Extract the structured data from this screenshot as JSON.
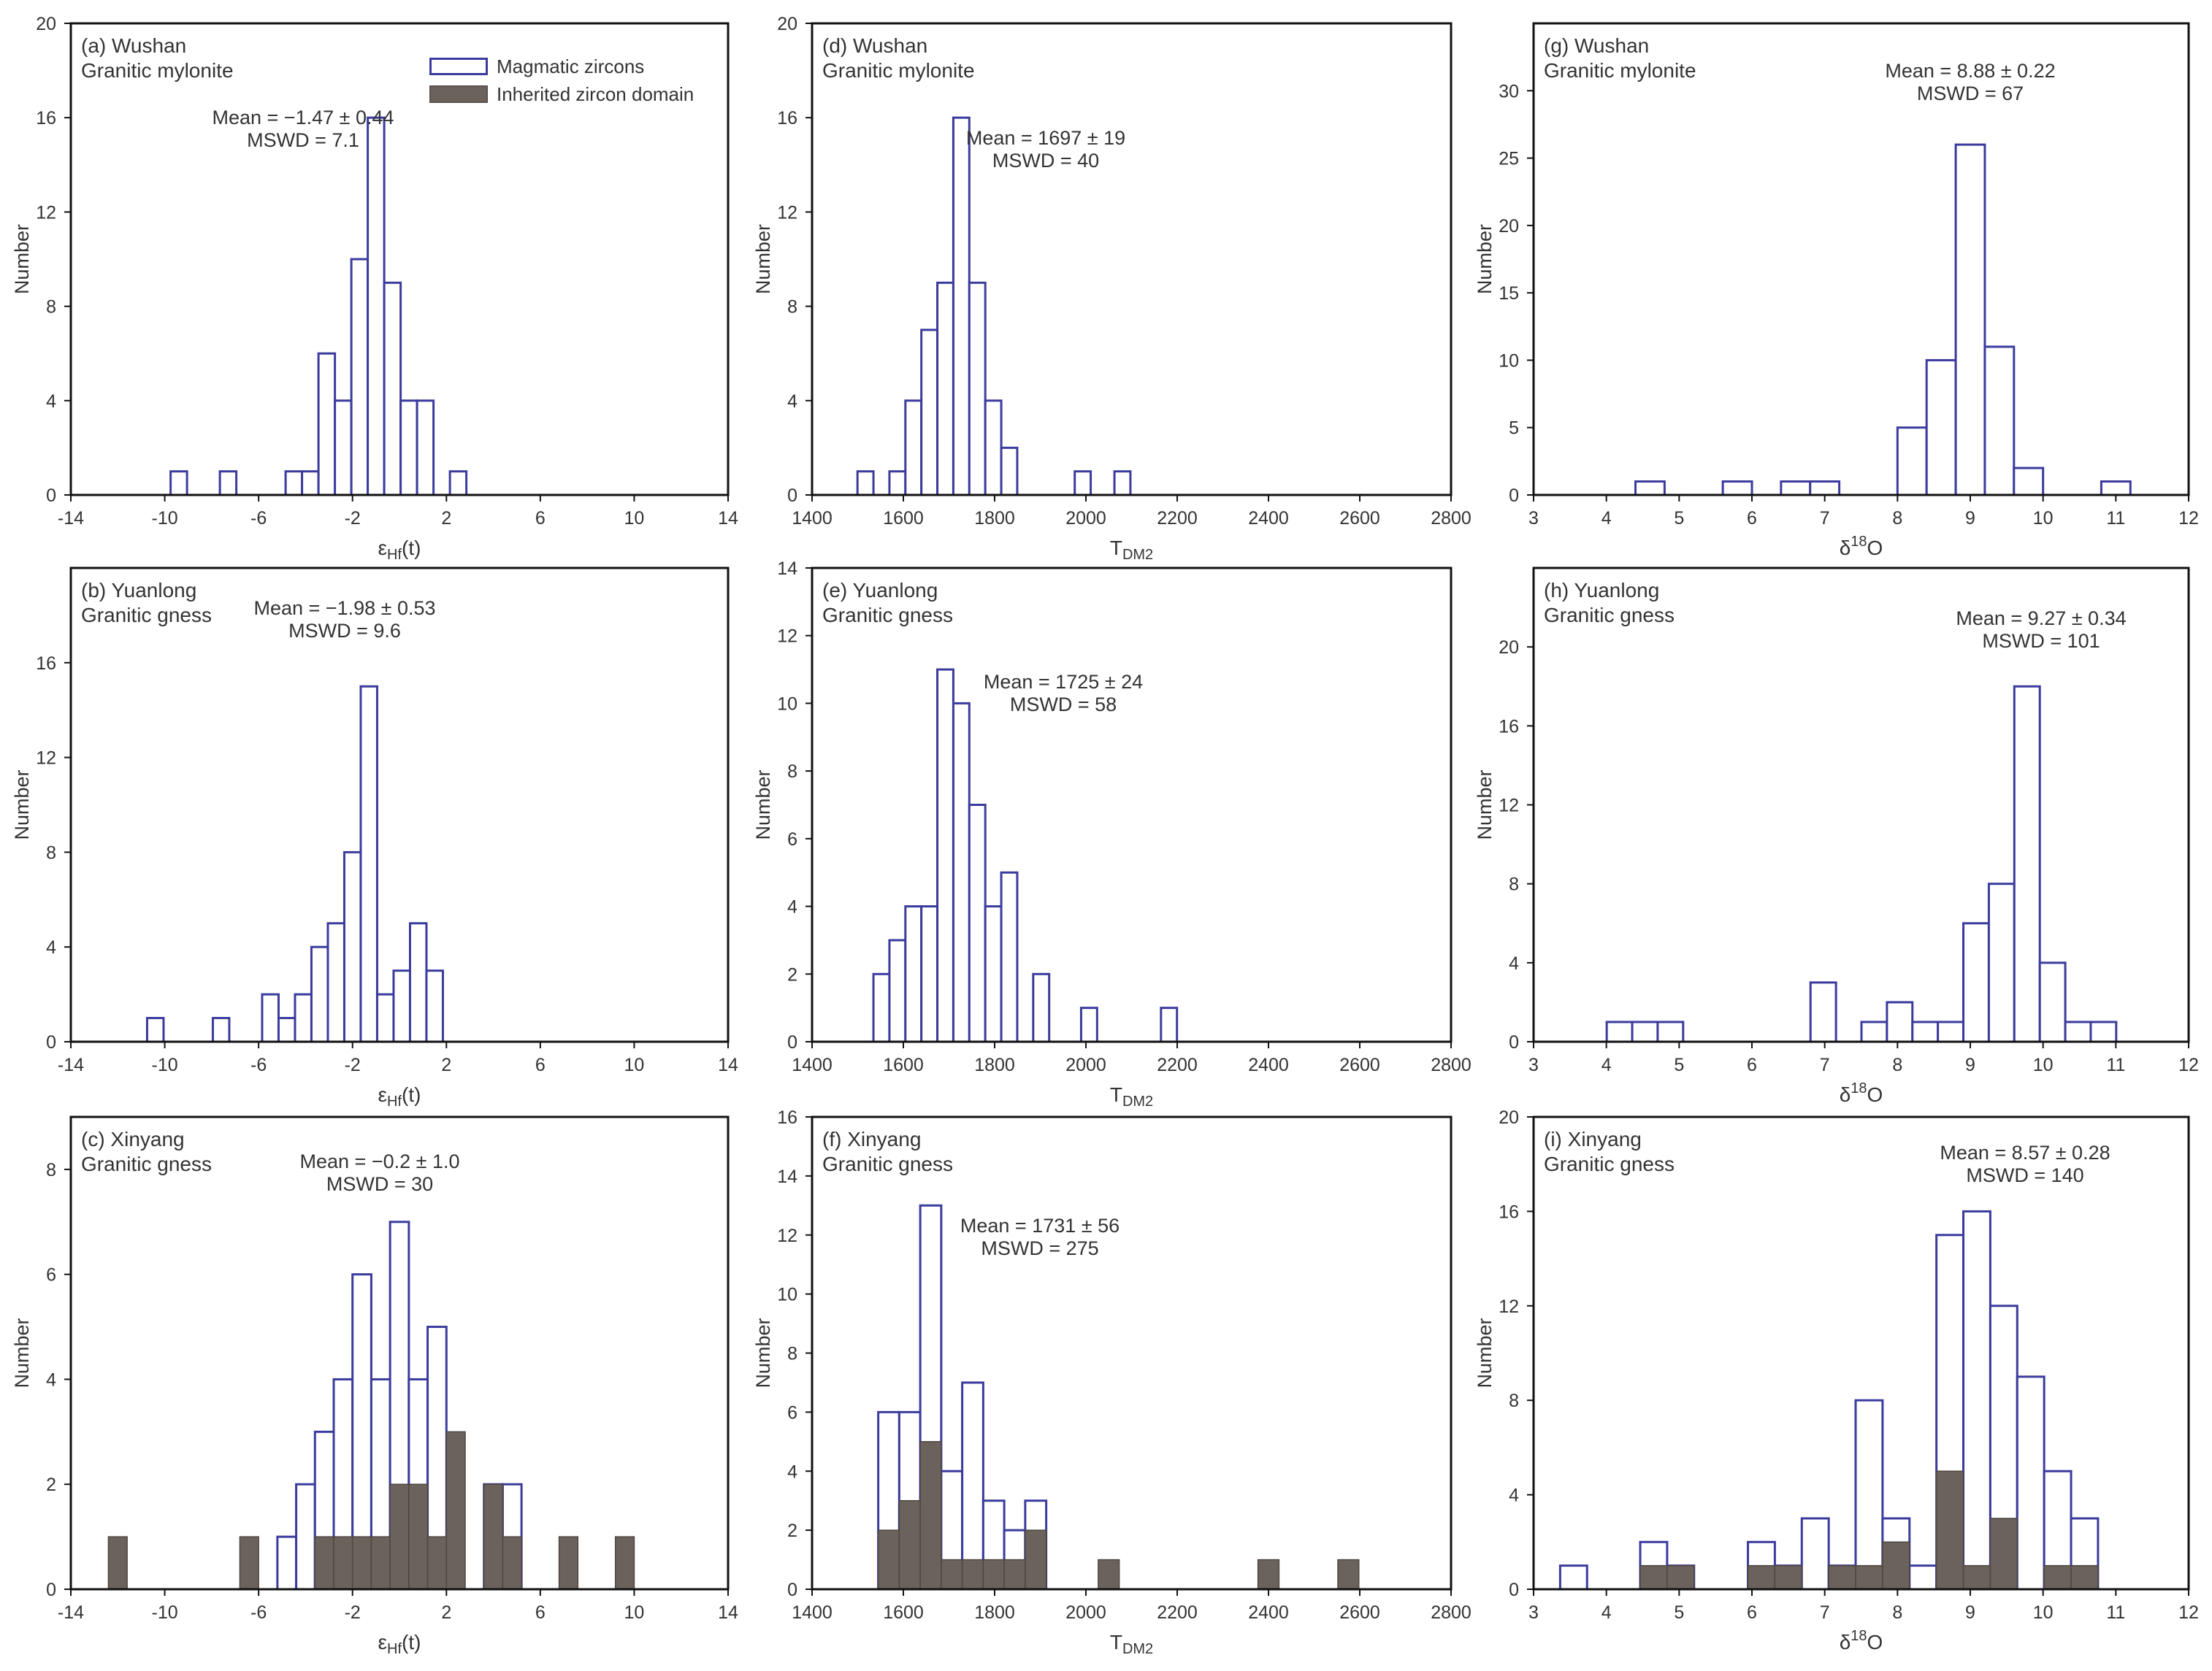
{
  "figure": {
    "colors": {
      "magmatic_stroke": "#3b3b9e",
      "inherited_fill": "#6b625c",
      "frame": "#111111",
      "text": "#333333"
    },
    "ylabel": "Number",
    "legend": [
      {
        "key": "mag",
        "label": "Magmatic zircons"
      },
      {
        "key": "inh",
        "label": "Inherited zircon domain"
      }
    ]
  },
  "chart_data": [
    {
      "id": "a",
      "type": "bar",
      "title": "(a) Wushan",
      "subtitle": "Granitic mylonite",
      "xlabel": "εHf(t)",
      "ylabel": "Number",
      "xlim": [
        -14,
        14
      ],
      "ylim": [
        0,
        20
      ],
      "xticks": [
        -14,
        -10,
        -6,
        -2,
        2,
        6,
        10,
        14
      ],
      "yticks": [
        0,
        4,
        8,
        12,
        16,
        20
      ],
      "annotation": [
        "Mean = −1.47 ± 0.44",
        "MSWD = 7.1"
      ],
      "bin_width": 0.7,
      "series": [
        {
          "name": "Magmatic zircons",
          "x": [
            -9.4,
            -7.3,
            -4.5,
            -3.8,
            -3.1,
            -2.4,
            -1.7,
            -1.0,
            -0.3,
            0.4,
            1.1,
            2.5
          ],
          "values": [
            1,
            1,
            1,
            1,
            6,
            4,
            10,
            16,
            9,
            4,
            4,
            1
          ]
        }
      ]
    },
    {
      "id": "b",
      "type": "bar",
      "title": "(b) Yuanlong",
      "subtitle": "Granitic gness",
      "xlabel": "εHf(t)",
      "ylabel": "Number",
      "xlim": [
        -14,
        14
      ],
      "ylim": [
        0,
        20
      ],
      "xticks": [
        -14,
        -10,
        -6,
        -2,
        2,
        6,
        10,
        14
      ],
      "yticks": [
        0,
        4,
        8,
        12,
        16
      ],
      "annotation": [
        "Mean = −1.98 ± 0.53",
        "MSWD = 9.6"
      ],
      "bin_width": 0.7,
      "series": [
        {
          "name": "Magmatic zircons",
          "x": [
            -10.4,
            -7.6,
            -5.5,
            -4.8,
            -4.1,
            -3.4,
            -2.7,
            -2.0,
            -1.3,
            -0.6,
            0.1,
            0.8
          ],
          "values": [
            1,
            1,
            2,
            1,
            2,
            4,
            5,
            8,
            15,
            2,
            3,
            5
          ]
        },
        {
          "name": "Magmatic zircons",
          "x": [
            1.5
          ],
          "values": [
            3
          ]
        }
      ]
    },
    {
      "id": "c",
      "type": "bar",
      "title": "(c) Xinyang",
      "subtitle": "Granitic gness",
      "xlabel": "εHf(t)",
      "ylabel": "Number",
      "xlim": [
        -14,
        14
      ],
      "ylim": [
        0,
        9
      ],
      "xticks": [
        -14,
        -10,
        -6,
        -2,
        2,
        6,
        10,
        14
      ],
      "yticks": [
        0,
        2,
        4,
        6,
        8
      ],
      "annotation": [
        "Mean = −0.2 ± 1.0",
        "MSWD = 30"
      ],
      "bin_width": 0.8,
      "series": [
        {
          "name": "Magmatic zircons",
          "x": [
            -12.0,
            -6.4,
            -4.8,
            -4.0,
            -3.2,
            -2.4,
            -1.6,
            -0.8,
            0.0,
            0.8,
            1.6,
            2.4,
            3.2,
            4.0,
            4.8,
            7.2,
            9.6
          ],
          "values": [
            0,
            0,
            1,
            2,
            3,
            4,
            6,
            4,
            7,
            4,
            5,
            0,
            0,
            2,
            2,
            0,
            0
          ]
        },
        {
          "name": "Inherited zircon domain",
          "x": [
            -12.0,
            -6.4,
            -4.8,
            -4.0,
            -3.2,
            -2.4,
            -1.6,
            -0.8,
            0.0,
            0.8,
            1.6,
            2.4,
            3.2,
            4.0,
            4.8,
            7.2,
            9.6
          ],
          "values": [
            1,
            1,
            0,
            0,
            1,
            1,
            1,
            1,
            2,
            2,
            1,
            3,
            0,
            2,
            1,
            1,
            1
          ]
        }
      ]
    },
    {
      "id": "d",
      "type": "bar",
      "title": "(d) Wushan",
      "subtitle": "Granitic mylonite",
      "xlabel": "TDM2",
      "ylabel": "Number",
      "xlim": [
        1400,
        2800
      ],
      "ylim": [
        0,
        20
      ],
      "xticks": [
        1400,
        1600,
        1800,
        2000,
        2200,
        2400,
        2600,
        2800
      ],
      "yticks": [
        0,
        4,
        8,
        12,
        16,
        20
      ],
      "annotation": [
        "Mean = 1697 ± 19",
        "MSWD = 40"
      ],
      "bin_width": 35,
      "series": [
        {
          "name": "Magmatic zircons",
          "x": [
            1517,
            1587,
            1622,
            1657,
            1692,
            1727,
            1762,
            1797,
            1832,
            1993,
            2080
          ],
          "values": [
            1,
            1,
            4,
            7,
            9,
            16,
            9,
            4,
            2,
            1,
            1
          ]
        },
        {
          "name": "Magmatic zircons",
          "x": [
            1552,
            1867
          ],
          "values": [
            0,
            0
          ]
        }
      ]
    },
    {
      "id": "e",
      "type": "bar",
      "title": "(e) Yuanlong",
      "subtitle": "Granitic gness",
      "xlabel": "TDM2",
      "ylabel": "Number",
      "xlim": [
        1400,
        2800
      ],
      "ylim": [
        0,
        14
      ],
      "xticks": [
        1400,
        1600,
        1800,
        2000,
        2200,
        2400,
        2600,
        2800
      ],
      "yticks": [
        0,
        2,
        4,
        6,
        8,
        10,
        12,
        14
      ],
      "annotation": [
        "Mean = 1725 ± 24",
        "MSWD = 58"
      ],
      "bin_width": 35,
      "series": [
        {
          "name": "Magmatic zircons",
          "x": [
            1552,
            1587,
            1622,
            1657,
            1692,
            1727,
            1762,
            1797,
            1832,
            1902,
            2007,
            2182
          ],
          "values": [
            2,
            3,
            4,
            4,
            11,
            10,
            7,
            4,
            5,
            2,
            1,
            1
          ]
        }
      ]
    },
    {
      "id": "f",
      "type": "bar",
      "title": "(f) Xinyang",
      "subtitle": "Granitic gness",
      "xlabel": "TDM2",
      "ylabel": "Number",
      "xlim": [
        1400,
        2800
      ],
      "ylim": [
        0,
        16
      ],
      "xticks": [
        1400,
        1600,
        1800,
        2000,
        2200,
        2400,
        2600,
        2800
      ],
      "yticks": [
        0,
        2,
        4,
        6,
        8,
        10,
        12,
        14,
        16
      ],
      "annotation": [
        "Mean = 1731 ± 56",
        "MSWD = 275"
      ],
      "bin_width": 46,
      "series": [
        {
          "name": "Magmatic zircons",
          "x": [
            1568,
            1614,
            1660,
            1706,
            1752,
            1798,
            1844,
            1890,
            2050,
            2400,
            2575
          ],
          "values": [
            6,
            6,
            13,
            4,
            7,
            3,
            2,
            3,
            0,
            0,
            0
          ]
        },
        {
          "name": "Inherited zircon domain",
          "x": [
            1568,
            1614,
            1660,
            1706,
            1752,
            1798,
            1844,
            1890,
            2050,
            2400,
            2575
          ],
          "values": [
            2,
            3,
            5,
            1,
            1,
            1,
            1,
            2,
            1,
            1,
            1
          ]
        }
      ]
    },
    {
      "id": "g",
      "type": "bar",
      "title": "(g) Wushan",
      "subtitle": "Granitic mylonite",
      "xlabel": "δ18O",
      "ylabel": "Number",
      "xlim": [
        3,
        12
      ],
      "ylim": [
        0,
        35
      ],
      "xticks": [
        3,
        4,
        5,
        6,
        7,
        8,
        9,
        10,
        11,
        12
      ],
      "yticks": [
        0,
        5,
        10,
        15,
        20,
        25,
        30
      ],
      "annotation": [
        "Mean = 8.88 ± 0.22",
        "MSWD = 67"
      ],
      "bin_width": 0.4,
      "series": [
        {
          "name": "Magmatic zircons",
          "x": [
            4.6,
            5.8,
            6.6,
            7.0,
            8.2,
            8.6,
            9.0,
            9.4,
            9.8,
            11.0
          ],
          "values": [
            1,
            1,
            1,
            1,
            5,
            10,
            26,
            11,
            2,
            1
          ]
        }
      ]
    },
    {
      "id": "h",
      "type": "bar",
      "title": "(h) Yuanlong",
      "subtitle": "Granitic gness",
      "xlabel": "δ18O",
      "ylabel": "Number",
      "xlim": [
        3,
        12
      ],
      "ylim": [
        0,
        24
      ],
      "xticks": [
        3,
        4,
        5,
        6,
        7,
        8,
        9,
        10,
        11,
        12
      ],
      "yticks": [
        0,
        4,
        8,
        12,
        16,
        20
      ],
      "annotation": [
        "Mean = 9.27 ± 0.34",
        "MSWD = 101"
      ],
      "bin_width": 0.35,
      "series": [
        {
          "name": "Magmatic zircons",
          "x": [
            4.18,
            4.53,
            4.88,
            6.98,
            7.68,
            8.03,
            8.38,
            8.73,
            9.08,
            9.43,
            9.78,
            10.13,
            10.48,
            10.83
          ],
          "values": [
            1,
            1,
            1,
            3,
            1,
            2,
            1,
            1,
            6,
            8,
            18,
            4,
            1,
            1
          ]
        }
      ]
    },
    {
      "id": "i",
      "type": "bar",
      "title": "(i) Xinyang",
      "subtitle": "Granitic gness",
      "xlabel": "δ18O",
      "ylabel": "Number",
      "xlim": [
        3,
        12
      ],
      "ylim": [
        0,
        20
      ],
      "xticks": [
        3,
        4,
        5,
        6,
        7,
        8,
        9,
        10,
        11,
        12
      ],
      "yticks": [
        0,
        4,
        8,
        12,
        16,
        20
      ],
      "annotation": [
        "Mean = 8.57 ± 0.28",
        "MSWD = 140"
      ],
      "bin_width": 0.37,
      "series": [
        {
          "name": "Magmatic zircons",
          "x": [
            3.55,
            4.65,
            5.02,
            6.13,
            6.5,
            6.87,
            7.24,
            7.61,
            7.98,
            8.35,
            8.72,
            9.09,
            9.46,
            9.83,
            10.2,
            10.57
          ],
          "values": [
            1,
            2,
            1,
            2,
            1,
            3,
            1,
            8,
            3,
            1,
            15,
            16,
            12,
            9,
            5,
            3
          ]
        },
        {
          "name": "Inherited zircon domain",
          "x": [
            3.55,
            4.65,
            5.02,
            6.13,
            6.5,
            6.87,
            7.24,
            7.61,
            7.98,
            8.35,
            8.72,
            9.09,
            9.46,
            9.83,
            10.2,
            10.57
          ],
          "values": [
            0,
            1,
            1,
            1,
            1,
            0,
            1,
            1,
            2,
            0,
            5,
            1,
            3,
            0,
            1,
            1
          ]
        }
      ]
    }
  ]
}
